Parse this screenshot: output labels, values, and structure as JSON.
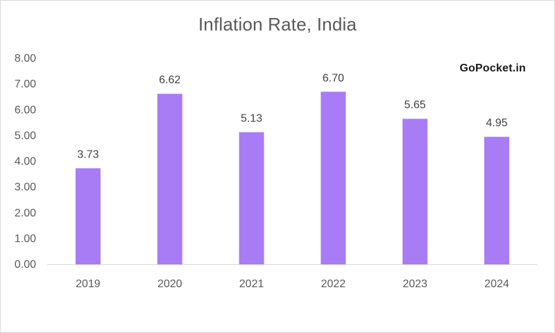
{
  "chart_data": {
    "type": "bar",
    "title": "Inflation Rate, India",
    "categories": [
      "2019",
      "2020",
      "2021",
      "2022",
      "2023",
      "2024"
    ],
    "values": [
      3.73,
      6.62,
      5.13,
      6.7,
      5.65,
      4.95
    ],
    "data_labels": [
      "3.73",
      "6.62",
      "5.13",
      "6.70",
      "5.65",
      "4.95"
    ],
    "xlabel": "",
    "ylabel": "",
    "ylim": [
      0,
      8
    ],
    "yticks": [
      "0.00",
      "1.00",
      "2.00",
      "3.00",
      "4.00",
      "5.00",
      "6.00",
      "7.00",
      "8.00"
    ],
    "grid": false,
    "legend": "none",
    "bar_color": "#a77cf5"
  },
  "watermark": "GoPocket.in"
}
